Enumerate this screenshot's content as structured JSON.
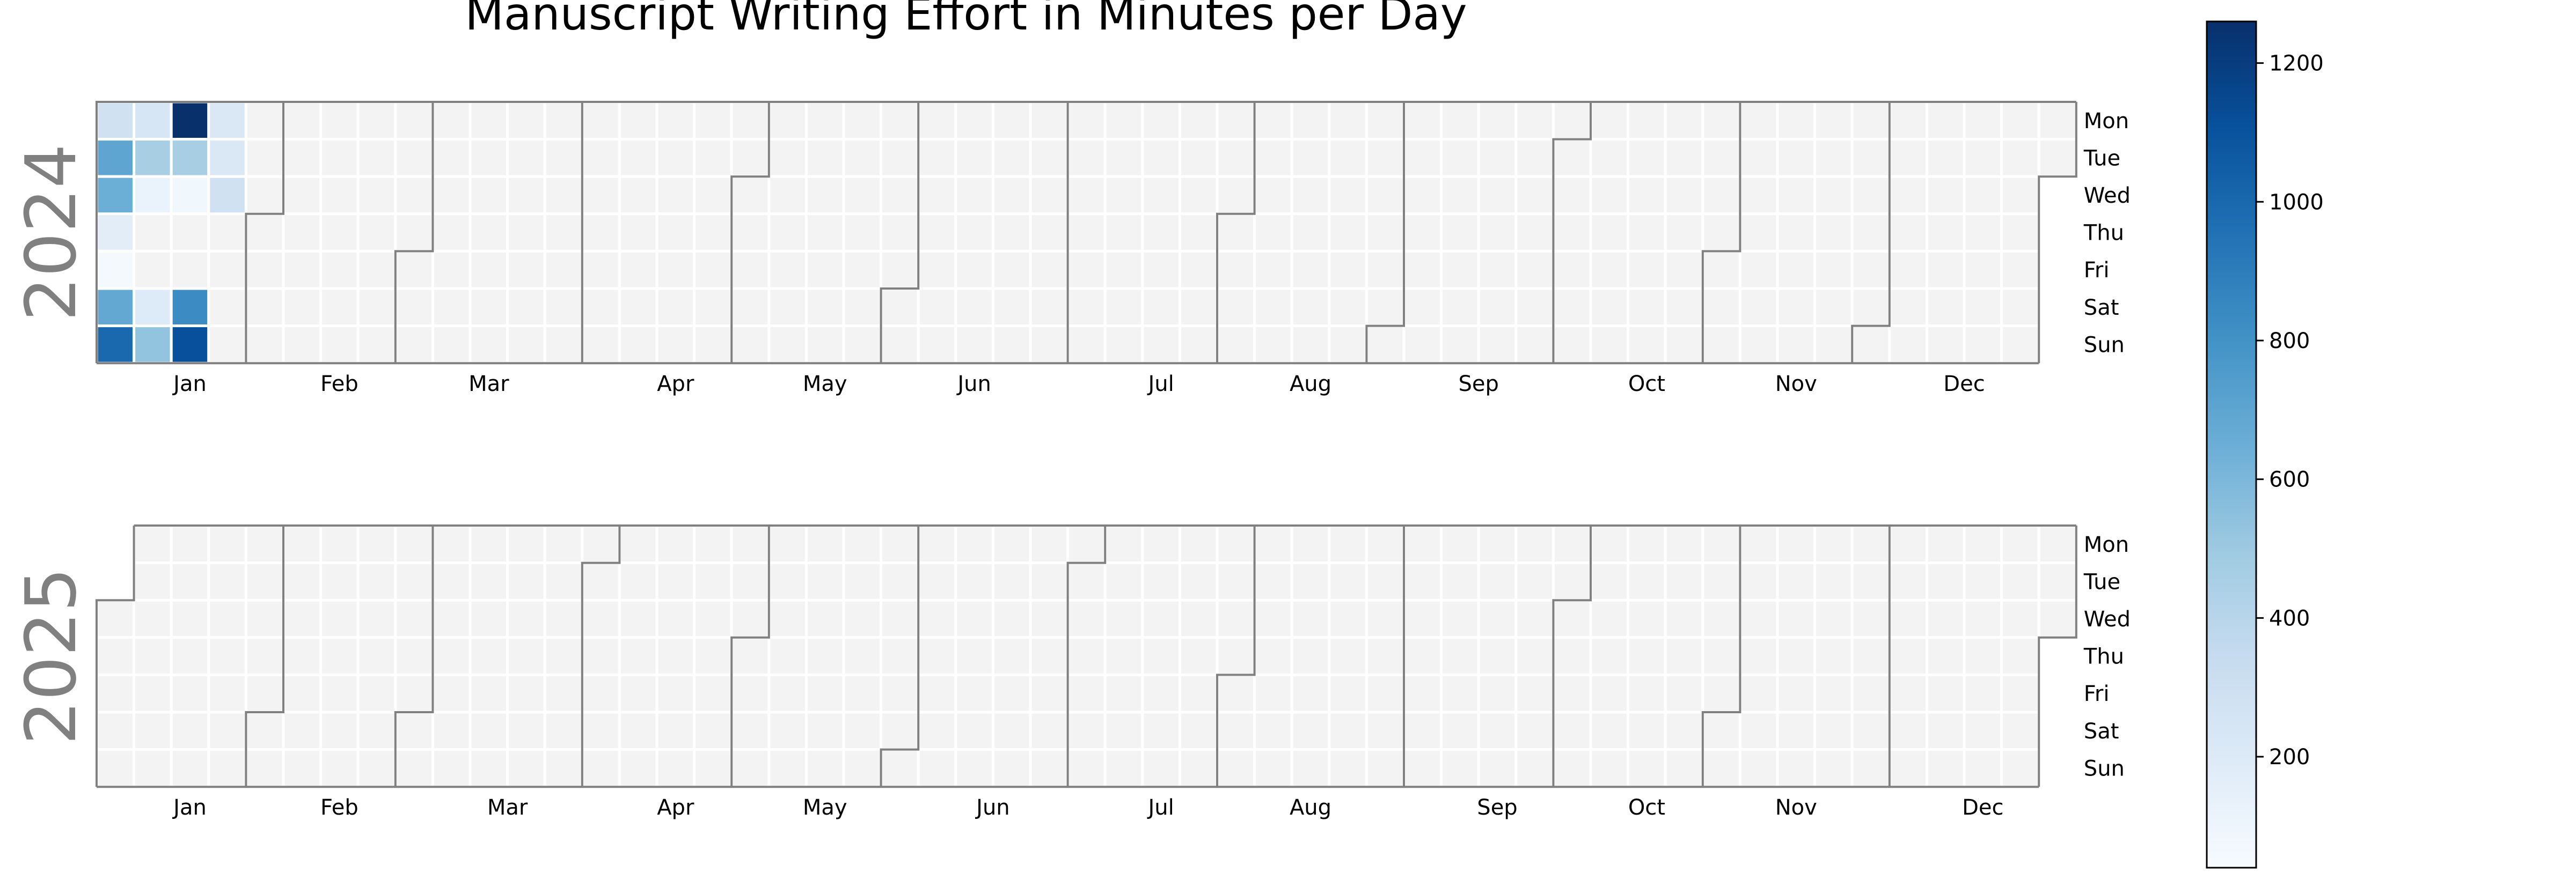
{
  "chart_data": {
    "type": "heatmap",
    "title": "Manuscript Writing Effort in Minutes per Day",
    "years": [
      "2024",
      "2025"
    ],
    "weekday_labels": [
      "Mon",
      "Tue",
      "Wed",
      "Thu",
      "Fri",
      "Sat",
      "Sun"
    ],
    "month_labels": [
      "Jan",
      "Feb",
      "Mar",
      "Apr",
      "May",
      "Jun",
      "Jul",
      "Aug",
      "Sep",
      "Oct",
      "Nov",
      "Dec"
    ],
    "colorbar": {
      "ticks": [
        200,
        400,
        600,
        800,
        1000,
        1200
      ],
      "min": 40,
      "max": 1260,
      "colormap": "Blues"
    },
    "no_data_color": "#f3f3f3",
    "month_border_color": "#808080",
    "year_label_color": "#808080",
    "values": [
      {
        "date": "2024-01-01",
        "minutes": 280
      },
      {
        "date": "2024-01-02",
        "minutes": 700
      },
      {
        "date": "2024-01-03",
        "minutes": 650
      },
      {
        "date": "2024-01-04",
        "minutes": 170
      },
      {
        "date": "2024-01-05",
        "minutes": 60
      },
      {
        "date": "2024-01-06",
        "minutes": 680
      },
      {
        "date": "2024-01-07",
        "minutes": 1000
      },
      {
        "date": "2024-01-08",
        "minutes": 240
      },
      {
        "date": "2024-01-09",
        "minutes": 460
      },
      {
        "date": "2024-01-10",
        "minutes": 120
      },
      {
        "date": "2024-01-13",
        "minutes": 200
      },
      {
        "date": "2024-01-14",
        "minutes": 530
      },
      {
        "date": "2024-01-15",
        "minutes": 1260
      },
      {
        "date": "2024-01-16",
        "minutes": 460
      },
      {
        "date": "2024-01-17",
        "minutes": 80
      },
      {
        "date": "2024-01-20",
        "minutes": 830
      },
      {
        "date": "2024-01-21",
        "minutes": 1110
      },
      {
        "date": "2024-01-22",
        "minutes": 220
      },
      {
        "date": "2024-01-23",
        "minutes": 220
      },
      {
        "date": "2024-01-24",
        "minutes": 280
      }
    ]
  }
}
